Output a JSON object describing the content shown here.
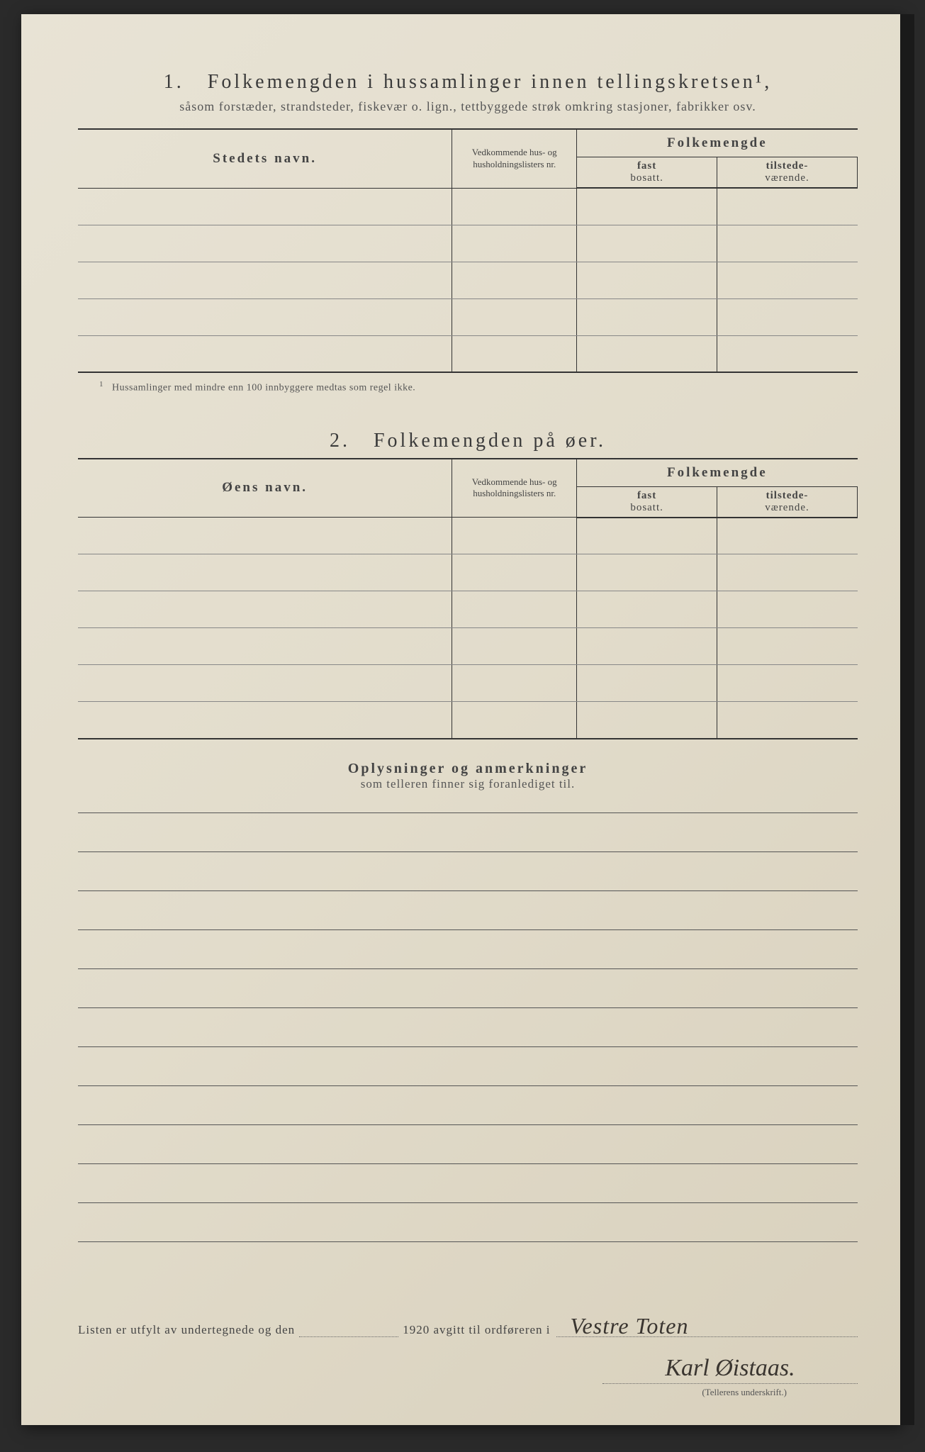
{
  "section1": {
    "number": "1.",
    "title": "Folkemengden i hussamlinger innen tellingskretsen¹,",
    "subtitle": "såsom forstæder, strandsteder, fiskevær o. lign., tettbyggede strøk omkring stasjoner, fabrikker osv.",
    "columns": {
      "name": "Stedets navn.",
      "nr": "Vedkommende hus- og husholdningslisters nr.",
      "folkemengde": "Folkemengde",
      "fast": "fast",
      "fastSub": "bosatt.",
      "tilstede": "tilstede-",
      "tilstedeSub": "værende."
    },
    "rowCount": 5,
    "footnote": "Hussamlinger med mindre enn 100 innbyggere medtas som regel ikke."
  },
  "section2": {
    "number": "2.",
    "title": "Folkemengden på øer.",
    "columns": {
      "name": "Øens navn.",
      "nr": "Vedkommende hus- og husholdningslisters nr.",
      "folkemengde": "Folkemengde",
      "fast": "fast",
      "fastSub": "bosatt.",
      "tilstede": "tilstede-",
      "tilstedeSub": "værende."
    },
    "rowCount": 6
  },
  "remarks": {
    "title": "Oplysninger og anmerkninger",
    "subtitle": "som telleren finner sig foranlediget til.",
    "lineCount": 11
  },
  "signature": {
    "prefix": "Listen er utfylt av undertegnede og den",
    "year": "1920",
    "middle": "avgitt til ordføreren i",
    "location": "Vestre Toten",
    "name": "Karl Øistaas.",
    "caption": "(Tellerens underskrift.)"
  }
}
